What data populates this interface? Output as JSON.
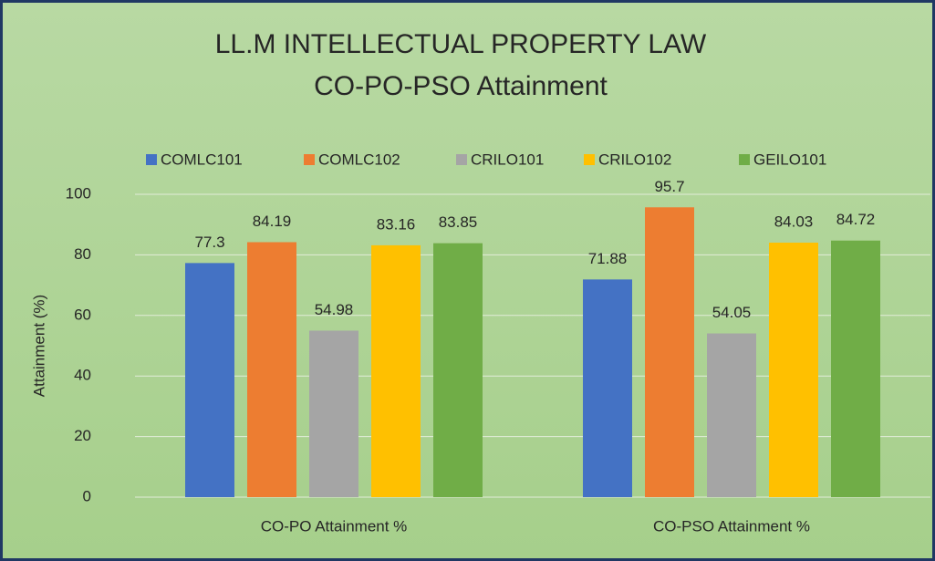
{
  "chart_data": {
    "type": "bar",
    "title": [
      "LL.M INTELLECTUAL PROPERTY LAW",
      "CO-PO-PSO Attainment"
    ],
    "y_label": "Attainment (%)",
    "categories": [
      "CO-PO Attainment %",
      "CO-PSO Attainment %"
    ],
    "series": [
      {
        "name": "COMLC101",
        "color": "#4472c4",
        "values": [
          77.3,
          71.88
        ]
      },
      {
        "name": "COMLC102",
        "color": "#ed7d31",
        "values": [
          84.19,
          95.7
        ]
      },
      {
        "name": "CRILO101",
        "color": "#a5a5a5",
        "values": [
          54.98,
          54.05
        ]
      },
      {
        "name": "CRILO102",
        "color": "#ffc000",
        "values": [
          83.16,
          84.03
        ]
      },
      {
        "name": "GEILO101",
        "color": "#70ad47",
        "values": [
          83.85,
          84.72
        ]
      }
    ],
    "ylim": [
      0,
      100
    ],
    "yticks": [
      0,
      20,
      40,
      60,
      80,
      100
    ],
    "grid": true,
    "legend": "top"
  }
}
